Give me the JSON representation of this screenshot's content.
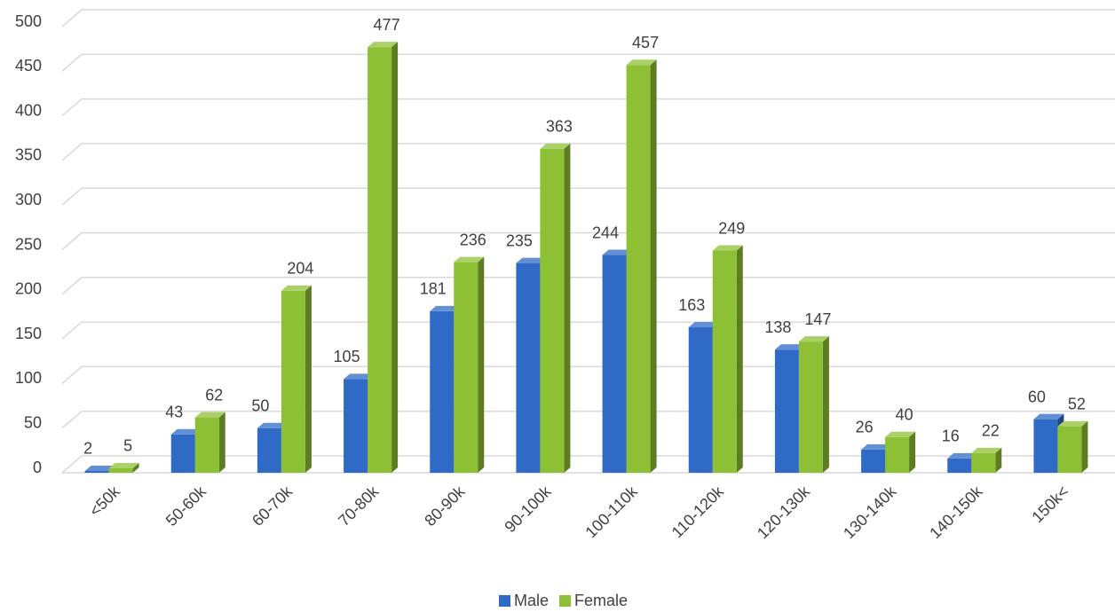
{
  "chart_data": {
    "type": "bar",
    "categories": [
      "<50k",
      "50-60k",
      "60-70k",
      "70-80k",
      "80-90k",
      "90-100k",
      "100-110k",
      "110-120k",
      "120-130k",
      "130-140k",
      "140-150k",
      "150k<"
    ],
    "series": [
      {
        "name": "Male",
        "color": "#2f6bc6",
        "values": [
          2,
          43,
          50,
          105,
          181,
          235,
          244,
          163,
          138,
          26,
          16,
          60
        ]
      },
      {
        "name": "Female",
        "color": "#8dc034",
        "values": [
          5,
          62,
          204,
          477,
          236,
          363,
          457,
          249,
          147,
          40,
          22,
          52
        ]
      }
    ],
    "ylim": [
      0,
      500
    ],
    "yticks": [
      0,
      50,
      100,
      150,
      200,
      250,
      300,
      350,
      400,
      450,
      500
    ],
    "grid": true,
    "legend": "bottom"
  }
}
